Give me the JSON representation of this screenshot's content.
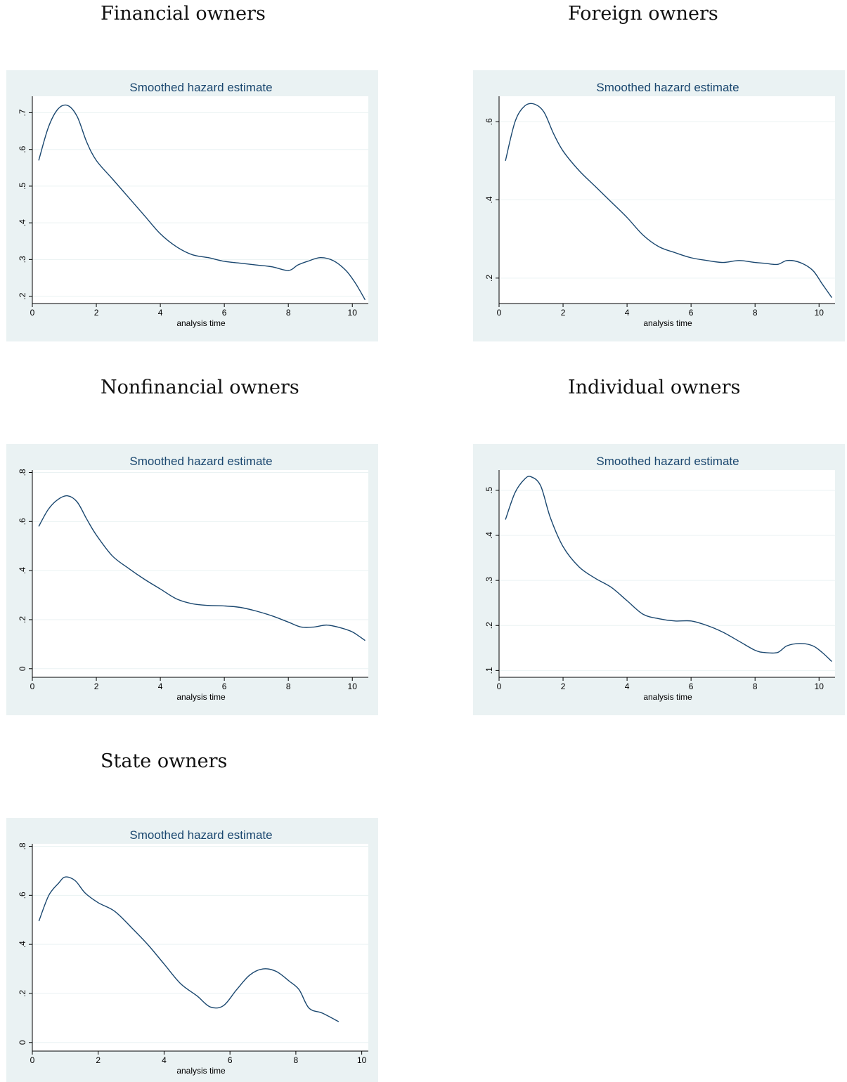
{
  "headings": {
    "financial": "Financial owners",
    "foreign": "Foreign owners",
    "nonfinancial": "Nonfinancial owners",
    "individual": "Individual owners",
    "state": "State owners"
  },
  "colors": {
    "panel_background": "#eaf2f3",
    "plot_background": "#ffffff",
    "line": "#1a476f",
    "title": "#1a476f",
    "grid": "#eaf2f3"
  },
  "chart_data": [
    {
      "type": "line",
      "title": "Smoothed hazard estimate",
      "xlabel": "analysis time",
      "ylabel": "",
      "grid": true,
      "xlim": [
        0,
        10.5
      ],
      "ylim": [
        0.18,
        0.745
      ],
      "xticks": [
        0,
        2,
        4,
        6,
        8,
        10
      ],
      "xtick_labels": [
        "0",
        "2",
        "4",
        "6",
        "8",
        "10"
      ],
      "yticks": [
        0.2,
        0.3,
        0.4,
        0.5,
        0.6,
        0.7
      ],
      "ytick_labels": [
        ".2",
        ".3",
        ".4",
        ".5",
        ".6",
        ".7"
      ],
      "series": [
        {
          "x": [
            0.2,
            0.5,
            0.8,
            1.1,
            1.4,
            1.7,
            2.0,
            2.5,
            3.0,
            3.5,
            4.0,
            4.5,
            5.0,
            5.5,
            6.0,
            6.5,
            7.0,
            7.5,
            8.0,
            8.3,
            8.6,
            9.0,
            9.4,
            9.8,
            10.1,
            10.4
          ],
          "y": [
            0.57,
            0.66,
            0.71,
            0.72,
            0.69,
            0.62,
            0.57,
            0.52,
            0.47,
            0.42,
            0.37,
            0.335,
            0.313,
            0.305,
            0.295,
            0.29,
            0.285,
            0.28,
            0.27,
            0.285,
            0.295,
            0.305,
            0.297,
            0.27,
            0.235,
            0.19
          ]
        }
      ]
    },
    {
      "type": "line",
      "title": "Smoothed hazard estimate",
      "xlabel": "analysis time",
      "ylabel": "",
      "grid": true,
      "xlim": [
        0,
        10.5
      ],
      "ylim": [
        0.135,
        0.665
      ],
      "xticks": [
        0,
        2,
        4,
        6,
        8,
        10
      ],
      "xtick_labels": [
        "0",
        "2",
        "4",
        "6",
        "8",
        "10"
      ],
      "yticks": [
        0.2,
        0.4,
        0.6
      ],
      "ytick_labels": [
        ".2",
        ".4",
        ".6"
      ],
      "series": [
        {
          "x": [
            0.2,
            0.5,
            0.8,
            1.1,
            1.4,
            1.7,
            2.0,
            2.5,
            3.0,
            3.5,
            4.0,
            4.5,
            5.0,
            5.5,
            6.0,
            6.5,
            7.0,
            7.5,
            8.0,
            8.3,
            8.7,
            9.0,
            9.4,
            9.8,
            10.1,
            10.4
          ],
          "y": [
            0.5,
            0.6,
            0.64,
            0.645,
            0.625,
            0.57,
            0.525,
            0.475,
            0.435,
            0.395,
            0.355,
            0.31,
            0.28,
            0.265,
            0.252,
            0.245,
            0.24,
            0.245,
            0.24,
            0.238,
            0.235,
            0.245,
            0.24,
            0.22,
            0.185,
            0.15
          ]
        }
      ]
    },
    {
      "type": "line",
      "title": "Smoothed hazard estimate",
      "xlabel": "analysis time",
      "ylabel": "",
      "grid": true,
      "xlim": [
        0,
        10.5
      ],
      "ylim": [
        -0.035,
        0.81
      ],
      "xticks": [
        0,
        2,
        4,
        6,
        8,
        10
      ],
      "xtick_labels": [
        "0",
        "2",
        "4",
        "6",
        "8",
        "10"
      ],
      "yticks": [
        0,
        0.2,
        0.4,
        0.6,
        0.8
      ],
      "ytick_labels": [
        "0",
        ".2",
        ".4",
        ".6",
        ".8"
      ],
      "series": [
        {
          "x": [
            0.2,
            0.5,
            0.8,
            1.1,
            1.4,
            1.7,
            2.0,
            2.5,
            3.0,
            3.5,
            4.0,
            4.5,
            5.0,
            5.5,
            6.0,
            6.5,
            7.0,
            7.5,
            8.0,
            8.4,
            8.8,
            9.2,
            9.6,
            10.0,
            10.4
          ],
          "y": [
            0.58,
            0.65,
            0.69,
            0.705,
            0.68,
            0.61,
            0.545,
            0.46,
            0.41,
            0.365,
            0.325,
            0.285,
            0.265,
            0.258,
            0.256,
            0.25,
            0.235,
            0.215,
            0.19,
            0.17,
            0.17,
            0.178,
            0.168,
            0.15,
            0.115
          ]
        }
      ]
    },
    {
      "type": "line",
      "title": "Smoothed hazard estimate",
      "xlabel": "analysis time",
      "ylabel": "",
      "grid": true,
      "xlim": [
        0,
        10.5
      ],
      "ylim": [
        0.085,
        0.545
      ],
      "xticks": [
        0,
        2,
        4,
        6,
        8,
        10
      ],
      "xtick_labels": [
        "0",
        "2",
        "4",
        "6",
        "8",
        "10"
      ],
      "yticks": [
        0.1,
        0.2,
        0.3,
        0.4,
        0.5
      ],
      "ytick_labels": [
        ".1",
        ".2",
        ".3",
        ".4",
        ".5"
      ],
      "series": [
        {
          "x": [
            0.2,
            0.5,
            0.8,
            1.0,
            1.3,
            1.6,
            2.0,
            2.5,
            3.0,
            3.5,
            4.0,
            4.5,
            5.0,
            5.5,
            6.0,
            6.5,
            7.0,
            7.5,
            8.0,
            8.3,
            8.7,
            9.0,
            9.4,
            9.8,
            10.1,
            10.4
          ],
          "y": [
            0.435,
            0.495,
            0.525,
            0.53,
            0.51,
            0.44,
            0.375,
            0.33,
            0.305,
            0.285,
            0.255,
            0.225,
            0.215,
            0.21,
            0.21,
            0.2,
            0.185,
            0.165,
            0.145,
            0.14,
            0.14,
            0.155,
            0.16,
            0.155,
            0.14,
            0.12
          ]
        }
      ]
    },
    {
      "type": "line",
      "title": "Smoothed hazard estimate",
      "xlabel": "analysis time",
      "ylabel": "",
      "grid": true,
      "xlim": [
        0,
        10.2
      ],
      "ylim": [
        -0.035,
        0.81
      ],
      "xticks": [
        0,
        2,
        4,
        6,
        8,
        10
      ],
      "xtick_labels": [
        "0",
        "2",
        "4",
        "6",
        "8",
        "10"
      ],
      "yticks": [
        0,
        0.2,
        0.4,
        0.6,
        0.8
      ],
      "ytick_labels": [
        "0",
        ".2",
        ".4",
        ".6",
        ".8"
      ],
      "series": [
        {
          "x": [
            0.2,
            0.5,
            0.8,
            1.0,
            1.3,
            1.6,
            2.0,
            2.5,
            3.0,
            3.5,
            4.0,
            4.5,
            5.0,
            5.4,
            5.8,
            6.2,
            6.6,
            7.0,
            7.4,
            7.8,
            8.1,
            8.4,
            8.8,
            9.3
          ],
          "y": [
            0.495,
            0.6,
            0.65,
            0.675,
            0.66,
            0.61,
            0.57,
            0.535,
            0.47,
            0.4,
            0.32,
            0.24,
            0.19,
            0.145,
            0.15,
            0.215,
            0.275,
            0.3,
            0.29,
            0.25,
            0.215,
            0.14,
            0.12,
            0.085
          ]
        }
      ]
    }
  ]
}
